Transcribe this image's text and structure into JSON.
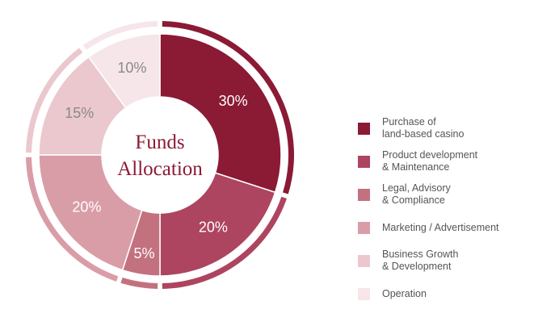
{
  "chart_data": {
    "type": "pie",
    "title": "Funds\nAllocation",
    "categories": [
      "Purchase of\nland-based casino",
      "Product development\n& Maintenance",
      "Legal, Advisory\n& Compliance",
      "Marketing / Advertisement",
      "Business Growth\n& Development",
      "Operation"
    ],
    "values": [
      30,
      20,
      5,
      20,
      15,
      10
    ],
    "value_labels": [
      "30%",
      "20%",
      "5%",
      "20%",
      "15%",
      "10%"
    ],
    "colors": [
      "#8b1a35",
      "#ad4560",
      "#c3717f",
      "#d99da8",
      "#ebc8ce",
      "#f6e6e9"
    ],
    "label_colors": [
      "#ffffff",
      "#ffffff",
      "#ffffff",
      "#ffffff",
      "#8a8a8a",
      "#8a8a8a"
    ],
    "legend": "right"
  }
}
